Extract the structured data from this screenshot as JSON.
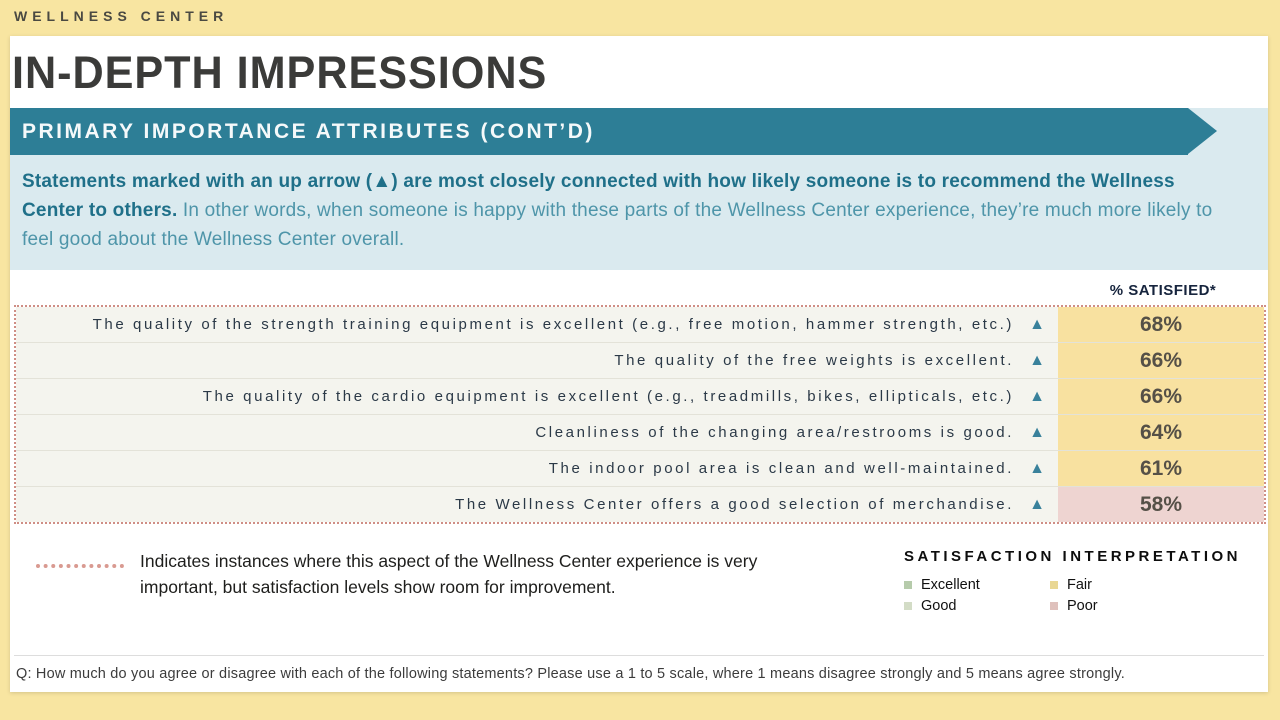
{
  "header": {
    "eyebrow": "WELLNESS CENTER",
    "title": "IN-DEPTH IMPRESSIONS",
    "banner": "PRIMARY IMPORTANCE ATTRIBUTES (CONT’D)"
  },
  "intro": {
    "bold": "Statements marked with an up arrow (▲) are most closely connected with how likely someone is to recommend the Wellness Center to others.",
    "regular": " In other words, when someone is happy with these parts of the Wellness Center experience, they’re much more likely to feel good about the Wellness Center overall."
  },
  "table": {
    "value_header": "% SATISFIED*",
    "rows": [
      {
        "statement": "The quality of the strength training equipment is excellent (e.g., free motion, hammer strength, etc.)",
        "arrow": "▲",
        "value": "68%",
        "tone": "fair"
      },
      {
        "statement": "The quality of the free weights is excellent.",
        "arrow": "▲",
        "value": "66%",
        "tone": "fair"
      },
      {
        "statement": "The quality of the cardio equipment is excellent (e.g., treadmills, bikes, ellipticals, etc.)",
        "arrow": "▲",
        "value": "66%",
        "tone": "fair"
      },
      {
        "statement": "Cleanliness of the changing area/restrooms is good.",
        "arrow": "▲",
        "value": "64%",
        "tone": "fair"
      },
      {
        "statement": "The indoor pool area is clean and well-maintained.",
        "arrow": "▲",
        "value": "61%",
        "tone": "fair"
      },
      {
        "statement": "The Wellness Center offers a good selection of merchandise.",
        "arrow": "▲",
        "value": "58%",
        "tone": "poor"
      }
    ]
  },
  "legend": {
    "text": "Indicates instances where this aspect of the Wellness Center experience is very important, but satisfaction levels show room for improvement."
  },
  "interpretation": {
    "title": "SATISFACTION INTERPRETATION",
    "items": [
      {
        "label": "Excellent",
        "color": "#b6cbab"
      },
      {
        "label": "Fair",
        "color": "#e9d794"
      },
      {
        "label": "Good",
        "color": "#d3dcc6"
      },
      {
        "label": "Poor",
        "color": "#dfc1bc"
      }
    ]
  },
  "footnote": "Q: How much do you agree or disagree with each of the following statements? Please use a 1 to 5 scale, where 1 means disagree strongly and 5 means agree strongly.",
  "colors": {
    "page_background": "#f8e5a1",
    "banner_teal": "#2d7e96",
    "intro_panel_blue": "#daeaef",
    "highlight_yellow": "#f8e1a0",
    "highlight_pink": "#eed4d1",
    "dotted_border": "#cf8e85"
  }
}
